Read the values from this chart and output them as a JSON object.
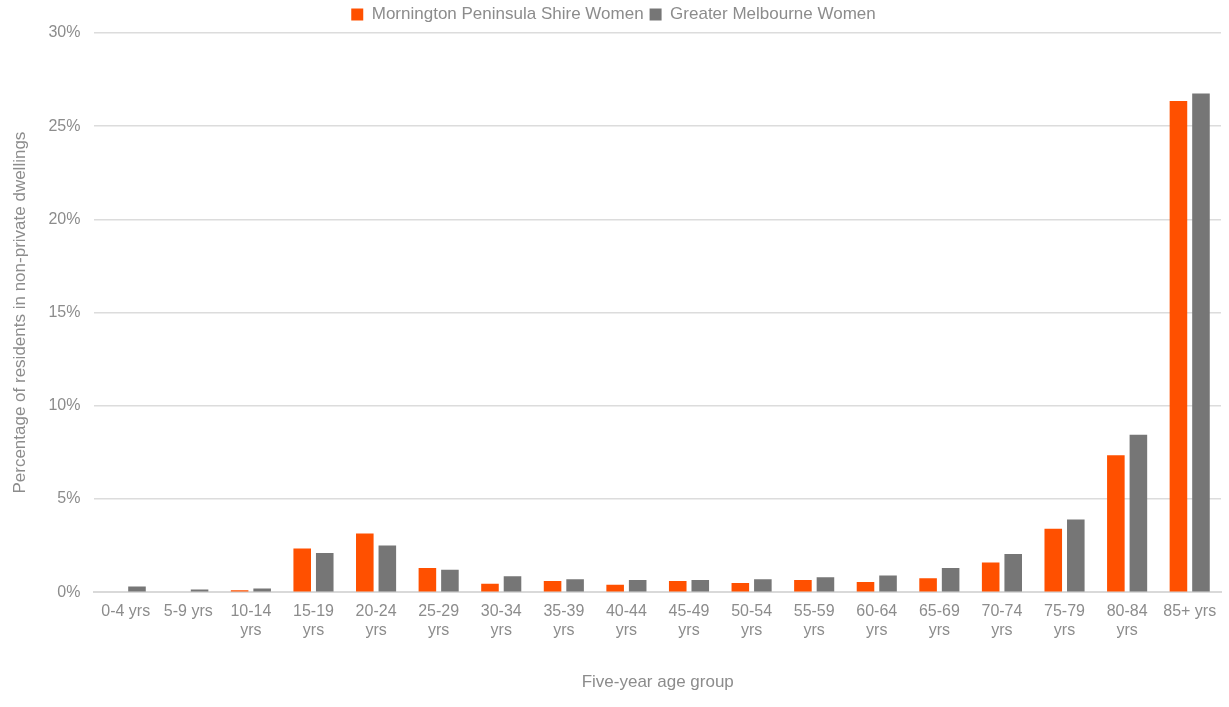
{
  "chart_data": {
    "type": "bar",
    "xlabel": "Five-year age group",
    "ylabel": "Percentage of residents in non-private dwellings",
    "categories": [
      "0-4 yrs",
      "5-9 yrs",
      "10-14 yrs",
      "15-19 yrs",
      "20-24 yrs",
      "25-29 yrs",
      "30-34 yrs",
      "35-39 yrs",
      "40-44 yrs",
      "45-49 yrs",
      "50-54 yrs",
      "55-59 yrs",
      "60-64 yrs",
      "65-69 yrs",
      "70-74 yrs",
      "75-79 yrs",
      "80-84 yrs",
      "85+ yrs"
    ],
    "series": [
      {
        "name": "Mornington Peninsula Shire Women",
        "color": "#ff5000",
        "values": [
          0,
          0,
          0.1,
          2.35,
          3.15,
          1.3,
          0.45,
          0.6,
          0.4,
          0.6,
          0.5,
          0.65,
          0.55,
          0.75,
          1.6,
          3.4,
          7.35,
          26.35
        ]
      },
      {
        "name": "Greater Melbourne Women",
        "color": "#767676",
        "values": [
          0.3,
          0.15,
          0.2,
          2.1,
          2.5,
          1.2,
          0.85,
          0.7,
          0.65,
          0.65,
          0.7,
          0.8,
          0.9,
          1.3,
          2.05,
          3.9,
          8.45,
          26.75
        ]
      }
    ],
    "ylim": [
      0,
      30
    ],
    "yticks": [
      {
        "value": 0,
        "label": "0%"
      },
      {
        "value": 5,
        "label": "5%"
      },
      {
        "value": 10,
        "label": "10%"
      },
      {
        "value": 15,
        "label": "15%"
      },
      {
        "value": 20,
        "label": "20%"
      },
      {
        "value": 25,
        "label": "25%"
      },
      {
        "value": 30,
        "label": "30%"
      }
    ],
    "grid": "y",
    "legend": "top"
  }
}
